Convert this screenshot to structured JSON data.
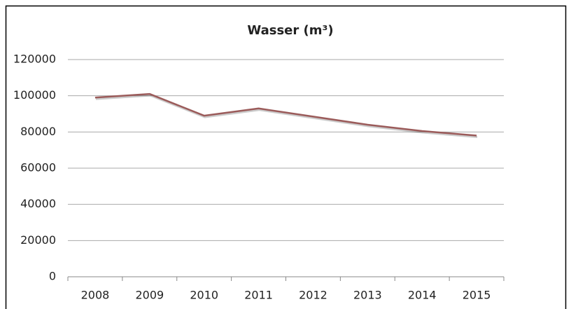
{
  "chart_data": {
    "type": "line",
    "title": "Wasser (m³)",
    "categories": [
      "2008",
      "2009",
      "2010",
      "2011",
      "2012",
      "2013",
      "2014",
      "2015"
    ],
    "series": [
      {
        "name": "Wasser",
        "color": "#9b5b5a",
        "values": [
          99000,
          101000,
          89000,
          93000,
          88500,
          84000,
          80500,
          78000
        ]
      }
    ],
    "ylim": [
      0,
      120000
    ],
    "yticks": [
      0,
      20000,
      40000,
      60000,
      80000,
      100000,
      120000
    ],
    "grid": true
  }
}
